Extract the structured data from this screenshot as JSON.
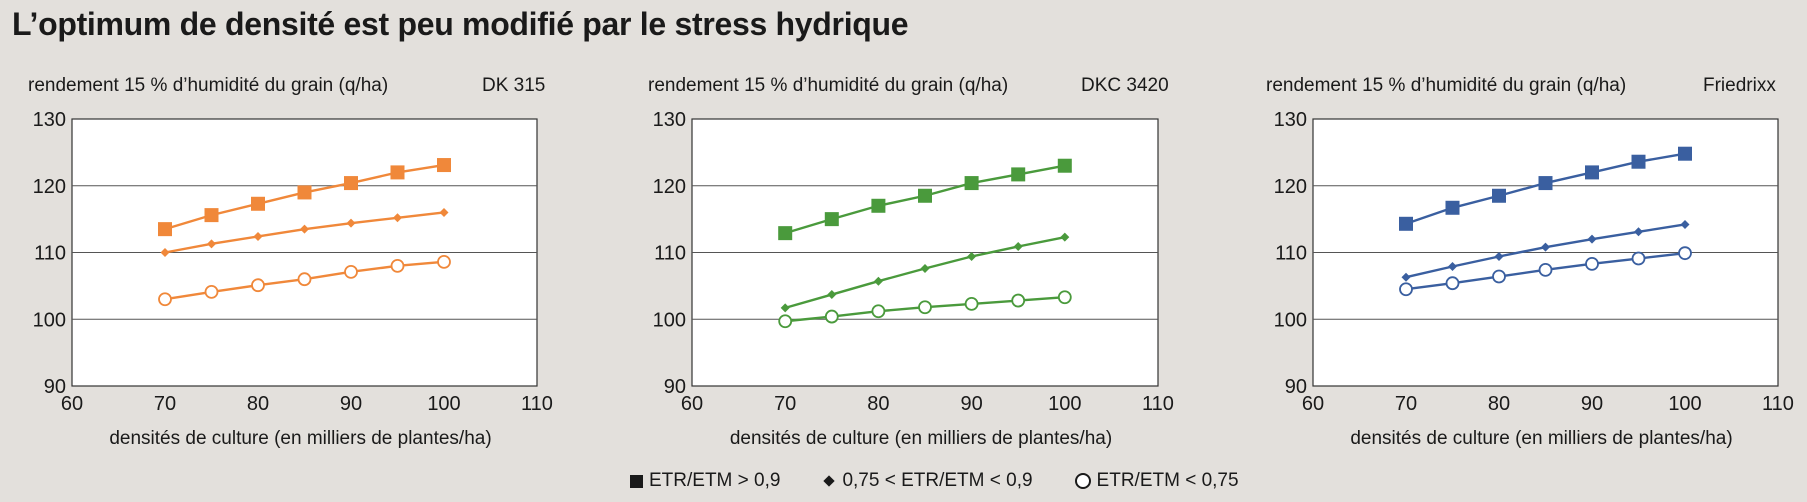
{
  "title": "L’optimum de densité est peu modifié par le stress hydrique",
  "legend": [
    {
      "marker": "square",
      "label": "ETR/ETM > 0,9"
    },
    {
      "marker": "diamond",
      "label": "0,75 < ETR/ETM < 0,9"
    },
    {
      "marker": "circle",
      "label": "ETR/ETM < 0,75"
    }
  ],
  "chart_data": [
    {
      "type": "line",
      "title": "DK 315",
      "ylabel": "rendement 15 % d’humidité du grain (q/ha)",
      "xlabel": "densités de culture (en milliers de plantes/ha)",
      "xlim": [
        60,
        110
      ],
      "ylim": [
        90,
        130
      ],
      "xticks": [
        60,
        70,
        80,
        90,
        100,
        110
      ],
      "yticks": [
        90,
        100,
        110,
        120,
        130
      ],
      "grid": "horizontal",
      "color": "#f0883a",
      "x": [
        70,
        75,
        80,
        85,
        90,
        95,
        100
      ],
      "series": [
        {
          "name": "ETR/ETM > 0,9",
          "marker": "square",
          "values": [
            113.5,
            115.6,
            117.3,
            119.0,
            120.4,
            122.0,
            123.1
          ]
        },
        {
          "name": "0,75 < ETR/ETM < 0,9",
          "marker": "diamond",
          "values": [
            110.0,
            111.3,
            112.4,
            113.5,
            114.4,
            115.2,
            116.0
          ]
        },
        {
          "name": "ETR/ETM < 0,75",
          "marker": "circle",
          "values": [
            103.0,
            104.1,
            105.1,
            106.0,
            107.1,
            108.0,
            108.6
          ]
        }
      ]
    },
    {
      "type": "line",
      "title": "DKC 3420",
      "ylabel": "rendement 15 % d’humidité du grain (q/ha)",
      "xlabel": "densités de culture (en milliers de plantes/ha)",
      "xlim": [
        60,
        110
      ],
      "ylim": [
        90,
        130
      ],
      "xticks": [
        60,
        70,
        80,
        90,
        100,
        110
      ],
      "yticks": [
        90,
        100,
        110,
        120,
        130
      ],
      "grid": "horizontal",
      "color": "#4a9a3c",
      "x": [
        70,
        75,
        80,
        85,
        90,
        95,
        100
      ],
      "series": [
        {
          "name": "ETR/ETM > 0,9",
          "marker": "square",
          "values": [
            112.9,
            115.0,
            117.0,
            118.5,
            120.4,
            121.7,
            123.0
          ]
        },
        {
          "name": "0,75 < ETR/ETM < 0,9",
          "marker": "diamond",
          "values": [
            101.7,
            103.7,
            105.7,
            107.6,
            109.4,
            110.9,
            112.3
          ]
        },
        {
          "name": "ETR/ETM < 0,75",
          "marker": "circle",
          "values": [
            99.7,
            100.4,
            101.2,
            101.8,
            102.3,
            102.8,
            103.3
          ]
        }
      ]
    },
    {
      "type": "line",
      "title": "Friedrixx",
      "ylabel": "rendement 15 % d’humidité du grain (q/ha)",
      "xlabel": "densités de culture (en milliers de plantes/ha)",
      "xlim": [
        60,
        110
      ],
      "ylim": [
        90,
        130
      ],
      "xticks": [
        60,
        70,
        80,
        90,
        100,
        110
      ],
      "yticks": [
        90,
        100,
        110,
        120,
        130
      ],
      "grid": "horizontal",
      "color": "#3a5fa0",
      "x": [
        70,
        75,
        80,
        85,
        90,
        95,
        100
      ],
      "series": [
        {
          "name": "ETR/ETM > 0,9",
          "marker": "square",
          "values": [
            114.3,
            116.7,
            118.5,
            120.4,
            122.0,
            123.6,
            124.8
          ]
        },
        {
          "name": "0,75 < ETR/ETM < 0,9",
          "marker": "diamond",
          "values": [
            106.3,
            107.9,
            109.4,
            110.8,
            112.0,
            113.1,
            114.2
          ]
        },
        {
          "name": "ETR/ETM < 0,75",
          "marker": "circle",
          "values": [
            104.5,
            105.4,
            106.4,
            107.4,
            108.3,
            109.1,
            109.9
          ]
        }
      ]
    }
  ]
}
